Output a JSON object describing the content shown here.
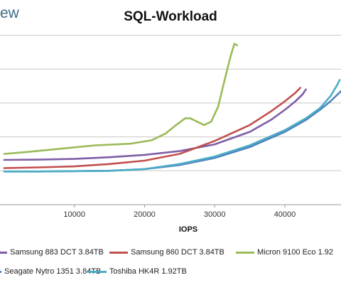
{
  "brand": "ew",
  "chart_data": {
    "type": "line",
    "title": "SQL-Workload",
    "xlabel": "IOPS",
    "ylabel": "",
    "xlim": [
      -600,
      48000
    ],
    "ylim": [
      0,
      5.2
    ],
    "x_ticks": [
      10000,
      20000,
      30000,
      40000
    ],
    "x_tick_labels": [
      "10000",
      "20000",
      "30000",
      "40000"
    ],
    "y_gridlines": [
      1,
      2,
      3,
      4,
      5
    ],
    "grid": true,
    "legend_position": "bottom",
    "series": [
      {
        "name": "Samsung 883 DCT 3.84TB",
        "color": "#7e5ea6",
        "points": [
          [
            0,
            1.32
          ],
          [
            5000,
            1.33
          ],
          [
            10000,
            1.35
          ],
          [
            15000,
            1.4
          ],
          [
            20000,
            1.47
          ],
          [
            25000,
            1.58
          ],
          [
            30000,
            1.78
          ],
          [
            35000,
            2.15
          ],
          [
            38000,
            2.5
          ],
          [
            40000,
            2.8
          ],
          [
            41500,
            3.05
          ],
          [
            42500,
            3.25
          ],
          [
            43000,
            3.4
          ]
        ]
      },
      {
        "name": "Samsung 860 DCT 3.84TB",
        "color": "#c0504d",
        "points": [
          [
            0,
            1.08
          ],
          [
            5000,
            1.1
          ],
          [
            10000,
            1.13
          ],
          [
            15000,
            1.2
          ],
          [
            20000,
            1.3
          ],
          [
            25000,
            1.5
          ],
          [
            30000,
            1.88
          ],
          [
            35000,
            2.35
          ],
          [
            38000,
            2.75
          ],
          [
            40000,
            3.05
          ],
          [
            41500,
            3.3
          ],
          [
            42200,
            3.45
          ]
        ]
      },
      {
        "name": "Micron 9100 Eco 1.92",
        "color": "#9bbb59",
        "points": [
          [
            0,
            1.5
          ],
          [
            3000,
            1.55
          ],
          [
            8000,
            1.65
          ],
          [
            13000,
            1.75
          ],
          [
            18000,
            1.8
          ],
          [
            21000,
            1.9
          ],
          [
            23000,
            2.1
          ],
          [
            24500,
            2.35
          ],
          [
            25800,
            2.55
          ],
          [
            26500,
            2.55
          ],
          [
            27500,
            2.45
          ],
          [
            28500,
            2.35
          ],
          [
            29500,
            2.45
          ],
          [
            30500,
            2.9
          ],
          [
            31200,
            3.5
          ],
          [
            31800,
            4.0
          ],
          [
            32300,
            4.4
          ],
          [
            32800,
            4.75
          ],
          [
            33200,
            4.7
          ]
        ]
      },
      {
        "name": "Seagate Nytro 1351 3.84TB",
        "color": "#4f81bd",
        "points": [
          [
            0,
            0.98
          ],
          [
            5000,
            0.98
          ],
          [
            10000,
            0.99
          ],
          [
            15000,
            1.0
          ],
          [
            20000,
            1.05
          ],
          [
            25000,
            1.17
          ],
          [
            30000,
            1.38
          ],
          [
            35000,
            1.7
          ],
          [
            40000,
            2.15
          ],
          [
            43000,
            2.5
          ],
          [
            45000,
            2.8
          ],
          [
            46500,
            3.05
          ],
          [
            48000,
            3.35
          ]
        ]
      },
      {
        "name": "Toshiba HK4R 1.92TB",
        "color": "#4bacc6",
        "points": [
          [
            0,
            0.98
          ],
          [
            5000,
            0.98
          ],
          [
            10000,
            0.99
          ],
          [
            15000,
            1.0
          ],
          [
            20000,
            1.05
          ],
          [
            25000,
            1.2
          ],
          [
            30000,
            1.42
          ],
          [
            35000,
            1.75
          ],
          [
            40000,
            2.2
          ],
          [
            43000,
            2.55
          ],
          [
            45000,
            2.85
          ],
          [
            46500,
            3.2
          ],
          [
            47500,
            3.55
          ],
          [
            47800,
            3.68
          ]
        ]
      }
    ]
  }
}
